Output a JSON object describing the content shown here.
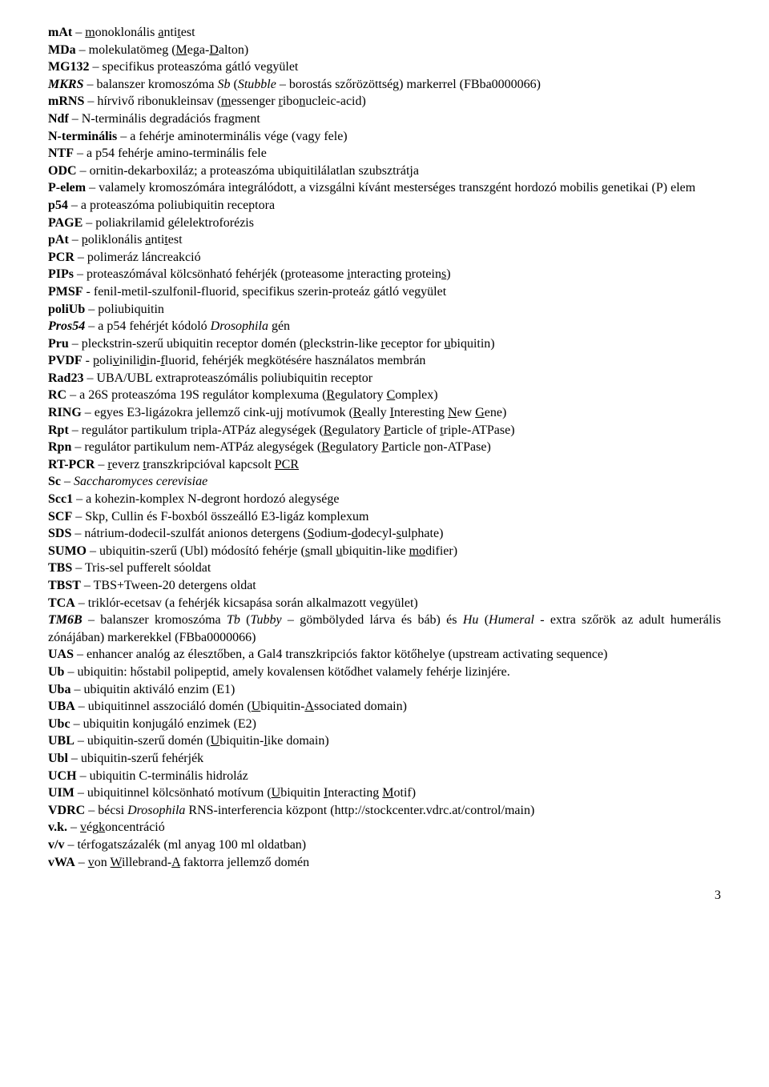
{
  "page_number": "3",
  "font": {
    "family": "Times New Roman",
    "size_pt": 12,
    "color": "#000000",
    "background": "#ffffff"
  },
  "entries": [
    {
      "html": "<b>mAt</b> – <u>m</u>onoklonális <u>a</u>nti<u>t</u>est"
    },
    {
      "html": "<b>MDa</b> – molekulatömeg (<u>M</u>ega-<u>D</u>alton)"
    },
    {
      "html": "<b>MG132</b> – specifikus proteaszóma gátló vegyület"
    },
    {
      "html": "<b><i>MKRS</i></b> – balanszer kromoszóma <i>Sb</i> (<i>Stubble</i> – borostás szőrözöttség) markerrel (FBba0000066)"
    },
    {
      "html": "<b>mRNS</b> – hírvivő ribonukleinsav (<u>m</u>essenger <u>r</u>ibo<u>n</u>ucleic-acid)"
    },
    {
      "html": "<b>Ndf</b> – N-terminális degradációs fragment"
    },
    {
      "html": "<b>N-terminális</b> – a fehérje aminoterminális vége (vagy fele)"
    },
    {
      "html": "<b>NTF</b> – a p54 fehérje amino-terminális fele"
    },
    {
      "html": "<b>ODC</b> – ornitin-dekarboxiláz; a proteaszóma ubiquitilálatlan szubsztrátja"
    },
    {
      "html": "<b>P-elem</b> – valamely kromoszómára integrálódott, a vizsgálni kívánt mesterséges transzgént hordozó mobilis genetikai (P) elem"
    },
    {
      "html": "<b>p54</b> – a proteaszóma poliubiquitin receptora"
    },
    {
      "html": "<b>PAGE</b> – poliakrilamid gélelektroforézis"
    },
    {
      "html": "<b>pAt</b> – <u>p</u>oliklonális <u>a</u>nti<u>t</u>est"
    },
    {
      "html": "<b>PCR</b> – polimeráz láncreakció"
    },
    {
      "html": "<b>PIPs</b> – proteaszómával kölcsönható fehérjék (<u>p</u>roteasome <u>i</u>nteracting <u>p</u>rotein<u>s</u>)"
    },
    {
      "html": "<b>PMSF</b> - fenil-metil-szulfonil-fluorid, specifikus szerin-proteáz gátló vegyület"
    },
    {
      "html": "<b>poliUb</b> – poliubiquitin"
    },
    {
      "html": "<b><i>Pros54</i></b> – a p54 fehérjét kódoló <i>Drosophila</i> gén"
    },
    {
      "html": "<b>Pru</b> – pleckstrin-szerű ubiquitin receptor domén (<u>p</u>leckstrin-like <u>r</u>eceptor for <u>u</u>biquitin)"
    },
    {
      "html": "<b>PVDF</b> - <u>p</u>oli<u>v</u>inili<u>d</u>in-<u>f</u>luorid, fehérjék megkötésére használatos membrán"
    },
    {
      "html": "<b>Rad23</b> – UBA/UBL extraproteaszómális poliubiquitin receptor"
    },
    {
      "html": "<b>RC</b> – a 26S proteaszóma 19S regulátor komplexuma (<u>R</u>egulatory <u>C</u>omplex)"
    },
    {
      "html": "<b>RING</b> – egyes E3-ligázokra jellemző cink-ujj motívumok (<u>R</u>eally <u>I</u>nteresting <u>N</u>ew <u>G</u>ene)"
    },
    {
      "html": "<b>Rpt</b> – regulátor partikulum tripla-ATPáz alegységek (<u>R</u>egulatory <u>P</u>article of <u>t</u>riple-ATPase)"
    },
    {
      "html": "<b>Rpn</b> – regulátor partikulum nem-ATPáz alegységek (<u>R</u>egulatory <u>P</u>article <u>n</u>on-ATPase)"
    },
    {
      "html": "<b>RT-PCR</b> – <u>r</u>everz <u>t</u>ranszkripcióval kapcsolt <u>PCR</u>"
    },
    {
      "html": "<b>Sc</b> – <i>Saccharomyces cerevisiae</i>"
    },
    {
      "html": "<b>Scc1</b> – a kohezin-komplex N-degront hordozó alegysége"
    },
    {
      "html": "<b>SCF</b> – Skp, Cullin és F-boxból összeálló E3-ligáz komplexum"
    },
    {
      "html": "<b>SDS</b> – nátrium-dodecil-szulfát anionos detergens (<u>S</u>odium-<u>d</u>odecyl-<u>s</u>ulphate)"
    },
    {
      "html": "<b>SUMO</b> – ubiquitin-szerű (Ubl) módosító fehérje (<u>s</u>mall <u>u</u>biquitin-like <u>mo</u>difier)"
    },
    {
      "html": "<b>TBS</b> – Tris-sel pufferelt sóoldat"
    },
    {
      "html": "<b>TBST</b> – TBS+Tween-20 detergens oldat"
    },
    {
      "html": "<b>TCA</b> – triklór-ecetsav (a fehérjék kicsapása során alkalmazott vegyület)"
    },
    {
      "html": "<b><i>TM6B</i></b> – balanszer kromoszóma <i>Tb</i> (<i>Tubby</i> – gömbölyded lárva és báb) és <i>Hu</i> (<i>Humeral</i> - extra szőrök az adult humerális zónájában) markerekkel (FBba0000066)"
    },
    {
      "html": "<b>UAS</b> – enhancer analóg az élesztőben, a Gal4 transzkripciós faktor kötőhelye (upstream activating sequence)"
    },
    {
      "html": "<b>Ub</b> – ubiquitin: hőstabil polipeptid, amely kovalensen kötődhet valamely fehérje lizinjére."
    },
    {
      "html": "<b>Uba</b> – ubiquitin aktiváló enzim (E1)"
    },
    {
      "html": "<b>UBA</b> – ubiquitinnel asszociáló domén (<u>U</u>biquitin-<u>A</u>ssociated domain)"
    },
    {
      "html": "<b>Ubc</b> – ubiquitin konjugáló enzimek (E2)"
    },
    {
      "html": "<b>UBL</b> – ubiquitin-szerű domén (<u>U</u>biquitin-<u>l</u>ike domain)"
    },
    {
      "html": "<b>Ubl</b> – ubiquitin-szerű fehérjék"
    },
    {
      "html": "<b>UCH</b> – ubiquitin C-terminális hidroláz"
    },
    {
      "html": "<b>UIM</b> – ubiquitinnel kölcsönható motívum (<u>U</u>biquitin <u>I</u>nteracting <u>M</u>otif)"
    },
    {
      "html": "<b>VDRC</b> – bécsi <i>Drosophila</i> RNS-interferencia központ (http://stockcenter.vdrc.at/control/main)"
    },
    {
      "html": "<b>v.k.</b> – <u>v</u>ég<u>k</u>oncentráció"
    },
    {
      "html": "<b>v/v</b> – térfogatszázalék (ml anyag 100 ml oldatban)"
    },
    {
      "html": "<b>vWA</b> – <u>v</u>on <u>W</u>illebrand-<u>A</u> faktorra jellemző domén"
    }
  ]
}
